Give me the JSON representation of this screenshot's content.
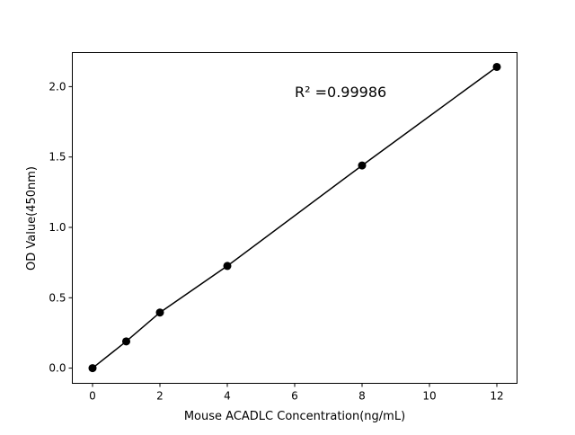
{
  "chart_data": {
    "type": "line",
    "title": "",
    "xlabel": "Mouse ACADLC Concentration(ng/mL)",
    "ylabel": "OD Value(450nm)",
    "x": [
      0,
      1,
      2,
      4,
      8,
      12
    ],
    "y": [
      0.0,
      0.19,
      0.395,
      0.726,
      1.44,
      2.14
    ],
    "xlim": [
      -0.6,
      12.6
    ],
    "ylim": [
      -0.108,
      2.242
    ],
    "xticks": [
      "0",
      "2",
      "4",
      "6",
      "8",
      "10",
      "12"
    ],
    "yticks": [
      "0.0",
      "0.5",
      "1.0",
      "1.5",
      "2.0"
    ],
    "annotation": "R² =0.99986",
    "grid": false,
    "line_color": "#000000",
    "marker": "circle"
  }
}
